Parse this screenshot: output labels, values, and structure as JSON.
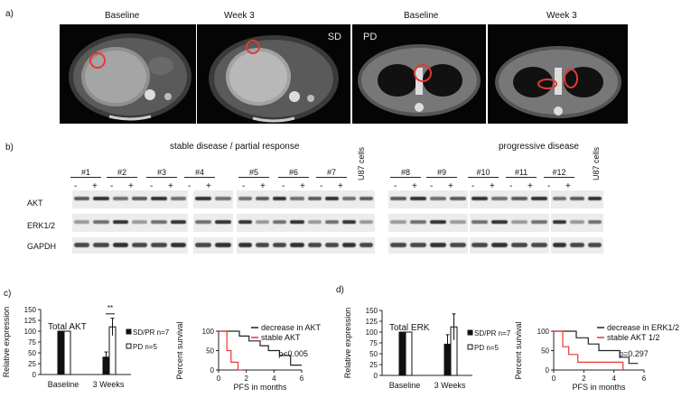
{
  "panel_a": {
    "letter": "a)",
    "images": [
      {
        "label": "Baseline",
        "tag": ""
      },
      {
        "label": "Week 3",
        "tag": "SD"
      },
      {
        "label": "Baseline",
        "tag": "PD"
      },
      {
        "label": "Week 3",
        "tag": ""
      }
    ]
  },
  "panel_b": {
    "letter": "b)",
    "group1_title": "stable disease / partial response",
    "group2_title": "progressive disease",
    "control_label": "U87 cells",
    "samples": [
      "#1",
      "#2",
      "#3",
      "#4",
      "#5",
      "#6",
      "#7",
      "#8",
      "#9",
      "#10",
      "#11",
      "#12"
    ],
    "minus": "-",
    "plus": "+",
    "rows": [
      "AKT",
      "ERK1/2",
      "GAPDH"
    ]
  },
  "panel_c": {
    "letter": "c)",
    "bar": {
      "title": "Total AKT",
      "ylabel": "Relative expression",
      "yticks": [
        "0",
        "25",
        "50",
        "75",
        "100",
        "125",
        "150"
      ],
      "categories": [
        "Baseline",
        "3 Weeks"
      ],
      "legend": [
        "SD/PR n=7",
        "PD n=5"
      ],
      "sig": "**"
    },
    "km": {
      "ylabel": "Percent survival",
      "xlabel": "PFS in months",
      "yticks": [
        "0",
        "50",
        "100"
      ],
      "xticks": [
        "0",
        "2",
        "4",
        "6"
      ],
      "legend": [
        "decrease in AKT",
        "stable AKT"
      ],
      "pvalue": "p<0.005"
    }
  },
  "panel_d": {
    "letter": "d)",
    "bar": {
      "title": "Total ERK",
      "ylabel": "Relative expression",
      "yticks": [
        "0",
        "25",
        "50",
        "75",
        "100",
        "125",
        "150"
      ],
      "categories": [
        "Baseline",
        "3 Weeks"
      ],
      "legend": [
        "SD/PR n=7",
        "PD n=5"
      ]
    },
    "km": {
      "ylabel": "Percent survival",
      "xlabel": "PFS in months",
      "yticks": [
        "0",
        "50",
        "100"
      ],
      "xticks": [
        "0",
        "2",
        "4",
        "6"
      ],
      "legend": [
        "decrease in ERK1/2",
        "stable AKT 1/2"
      ],
      "pvalue": "p=0.297"
    }
  },
  "colors": {
    "black_line": "#222222",
    "red_line": "#e53935",
    "bar_fill": "#111111"
  },
  "chart_data": [
    {
      "type": "bar",
      "title": "Total AKT",
      "categories": [
        "Baseline",
        "3 Weeks"
      ],
      "ylabel": "Relative expression",
      "ylim": [
        0,
        150
      ],
      "series": [
        {
          "name": "SD/PR n=7",
          "values": [
            100,
            40
          ],
          "errors": [
            0,
            12
          ]
        },
        {
          "name": "PD n=5",
          "values": [
            100,
            110
          ],
          "errors": [
            0,
            20
          ]
        }
      ]
    },
    {
      "type": "line",
      "xlabel": "PFS in months",
      "ylabel": "Percent survival",
      "xlim": [
        0,
        6
      ],
      "ylim": [
        0,
        100
      ],
      "series": [
        {
          "name": "decrease in AKT",
          "x": [
            0,
            1.5,
            1.5,
            2.2,
            2.2,
            3.0,
            3.0,
            3.6,
            3.6,
            4.4,
            4.4,
            5.2,
            5.2,
            6.0
          ],
          "y": [
            100,
            100,
            87.5,
            87.5,
            75,
            75,
            62.5,
            62.5,
            50,
            50,
            37.5,
            37.5,
            12.5,
            12.5
          ]
        },
        {
          "name": "stable AKT",
          "x": [
            0,
            0.6,
            0.6,
            0.9,
            0.9,
            1.4,
            1.4,
            1.7
          ],
          "y": [
            100,
            100,
            50,
            50,
            20,
            20,
            0,
            0
          ]
        }
      ]
    },
    {
      "type": "bar",
      "title": "Total ERK",
      "categories": [
        "Baseline",
        "3 Weeks"
      ],
      "ylabel": "Relative expression",
      "ylim": [
        0,
        150
      ],
      "series": [
        {
          "name": "SD/PR n=7",
          "values": [
            100,
            72
          ],
          "errors": [
            0,
            22
          ]
        },
        {
          "name": "PD n=5",
          "values": [
            100,
            112
          ],
          "errors": [
            0,
            30
          ]
        }
      ]
    },
    {
      "type": "line",
      "xlabel": "PFS in months",
      "ylabel": "Percent survival",
      "xlim": [
        0,
        6
      ],
      "ylim": [
        0,
        100
      ],
      "series": [
        {
          "name": "decrease in ERK1/2",
          "x": [
            0,
            1.5,
            1.5,
            2.3,
            2.3,
            3.0,
            3.0,
            4.4,
            4.4,
            5.0,
            5.0,
            5.6
          ],
          "y": [
            100,
            100,
            83,
            83,
            67,
            67,
            50,
            50,
            33,
            33,
            17,
            17
          ]
        },
        {
          "name": "stable AKT 1/2",
          "x": [
            0,
            0.6,
            0.6,
            1.0,
            1.0,
            1.6,
            1.6,
            2.6,
            2.6,
            4.6,
            4.6
          ],
          "y": [
            100,
            100,
            60,
            60,
            40,
            40,
            20,
            20,
            20,
            20,
            0
          ]
        }
      ]
    }
  ]
}
